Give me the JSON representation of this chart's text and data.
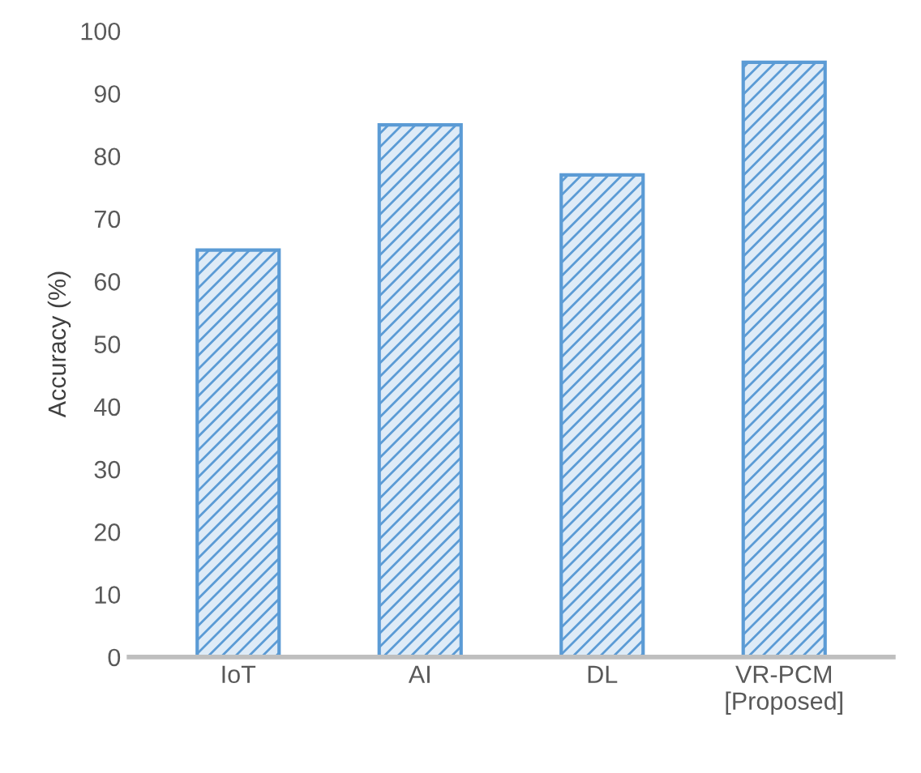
{
  "chart_data": {
    "type": "bar",
    "ylabel": "Accuracy (%)",
    "categories": [
      "IoT",
      "AI",
      "DL",
      "VR-PCM\n[Proposed]"
    ],
    "values": [
      65,
      85,
      77,
      95
    ],
    "color": "#5b9bd5",
    "ylim": [
      0,
      100
    ],
    "yticks": [
      0,
      10,
      20,
      30,
      40,
      50,
      60,
      70,
      80,
      90,
      100
    ],
    "grid": false
  }
}
